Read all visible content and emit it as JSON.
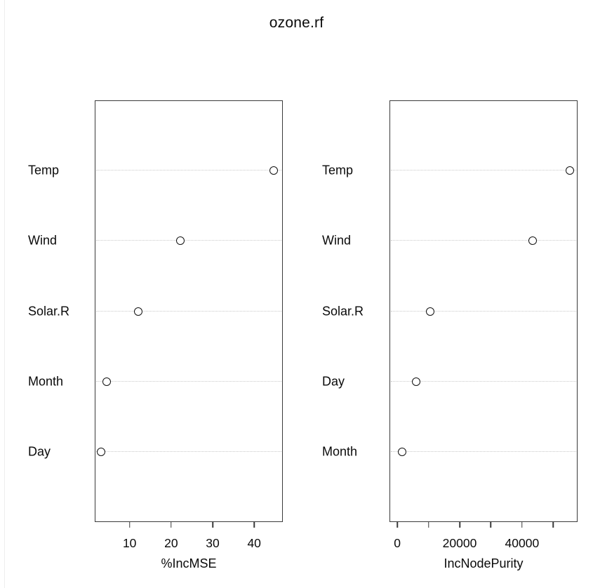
{
  "title": "ozone.rf",
  "colors": {
    "background": "#ffffff",
    "panel_border": "#3a3a3a",
    "dotted_line": "#c9c9c9",
    "point_stroke": "#111111",
    "text": "#0a0a0a"
  },
  "chart_data": [
    {
      "type": "dot",
      "panel": "left",
      "xlabel": "%IncMSE",
      "categories": [
        "Temp",
        "Wind",
        "Solar.R",
        "Month",
        "Day"
      ],
      "values": [
        44.7,
        22.2,
        12.0,
        4.4,
        3.2
      ],
      "xlim": [
        1.6,
        46.9
      ],
      "ticks": [
        {
          "v": 10,
          "label": "10"
        },
        {
          "v": 20,
          "label": "20"
        },
        {
          "v": 30,
          "label": "30"
        },
        {
          "v": 40,
          "label": "40"
        }
      ],
      "grid": "dotted-row-lines",
      "legend": "none",
      "marker": "open-circle"
    },
    {
      "type": "dot",
      "panel": "right",
      "xlabel": "IncNodePurity",
      "categories": [
        "Temp",
        "Wind",
        "Solar.R",
        "Day",
        "Month"
      ],
      "values": [
        55300,
        43300,
        10600,
        6100,
        1600
      ],
      "xlim": [
        -2500,
        57800
      ],
      "ticks": [
        {
          "v": 0,
          "label": "0"
        },
        {
          "v": 10000,
          "label": ""
        },
        {
          "v": 20000,
          "label": "20000"
        },
        {
          "v": 30000,
          "label": ""
        },
        {
          "v": 40000,
          "label": "40000"
        },
        {
          "v": 50000,
          "label": ""
        }
      ],
      "grid": "dotted-row-lines",
      "legend": "none",
      "marker": "open-circle"
    }
  ]
}
